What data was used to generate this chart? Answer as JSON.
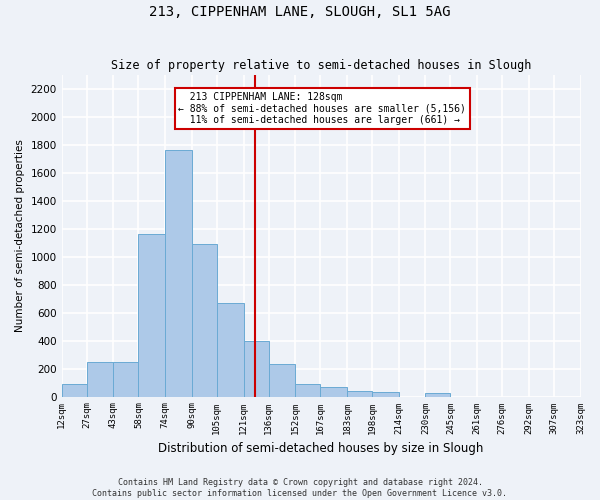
{
  "title1": "213, CIPPENHAM LANE, SLOUGH, SL1 5AG",
  "title2": "Size of property relative to semi-detached houses in Slough",
  "xlabel": "Distribution of semi-detached houses by size in Slough",
  "ylabel": "Number of semi-detached properties",
  "property_label": "213 CIPPENHAM LANE: 128sqm",
  "pct_smaller": 88,
  "n_smaller": 5156,
  "pct_larger": 11,
  "n_larger": 661,
  "bin_edges": [
    12,
    27,
    43,
    58,
    74,
    90,
    105,
    121,
    136,
    152,
    167,
    183,
    198,
    214,
    230,
    245,
    261,
    276,
    292,
    307,
    323
  ],
  "bar_heights": [
    90,
    245,
    245,
    1160,
    1760,
    1090,
    670,
    400,
    230,
    90,
    70,
    40,
    30,
    0,
    25,
    0,
    0,
    0,
    0,
    0
  ],
  "bar_color": "#adc9e8",
  "bar_edge_color": "#6aaad4",
  "vline_color": "#cc0000",
  "vline_x": 128,
  "annotation_box_color": "#cc0000",
  "background_color": "#eef2f8",
  "grid_color": "#ffffff",
  "ylim": [
    0,
    2300
  ],
  "yticks": [
    0,
    200,
    400,
    600,
    800,
    1000,
    1200,
    1400,
    1600,
    1800,
    2000,
    2200
  ],
  "tick_labels": [
    "12sqm",
    "27sqm",
    "43sqm",
    "58sqm",
    "74sqm",
    "90sqm",
    "105sqm",
    "121sqm",
    "136sqm",
    "152sqm",
    "167sqm",
    "183sqm",
    "198sqm",
    "214sqm",
    "230sqm",
    "245sqm",
    "261sqm",
    "276sqm",
    "292sqm",
    "307sqm",
    "323sqm"
  ],
  "footer1": "Contains HM Land Registry data © Crown copyright and database right 2024.",
  "footer2": "Contains public sector information licensed under the Open Government Licence v3.0."
}
